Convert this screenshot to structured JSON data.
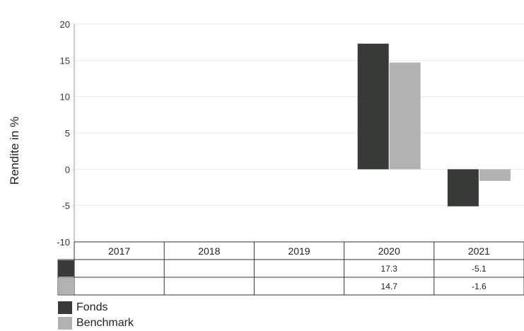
{
  "chart_data": {
    "type": "bar",
    "categories": [
      "2017",
      "2018",
      "2019",
      "2020",
      "2021"
    ],
    "series": [
      {
        "name": "Fonds",
        "color": "#383a38",
        "values": [
          null,
          null,
          null,
          17.3,
          -5.1
        ],
        "labels": [
          "",
          "",
          "",
          "17.3",
          "-5.1"
        ]
      },
      {
        "name": "Benchmark",
        "color": "#b2b2b2",
        "values": [
          null,
          null,
          null,
          14.7,
          -1.6
        ],
        "labels": [
          "",
          "",
          "",
          "14.7",
          "-1.6"
        ]
      }
    ],
    "ylabel": "Rendite in %",
    "ylim": [
      -10,
      20
    ],
    "yticks": [
      20,
      15,
      10,
      5,
      0,
      -5,
      -10
    ],
    "grid": true,
    "legend_position": "bottom-left",
    "data_table": true
  }
}
